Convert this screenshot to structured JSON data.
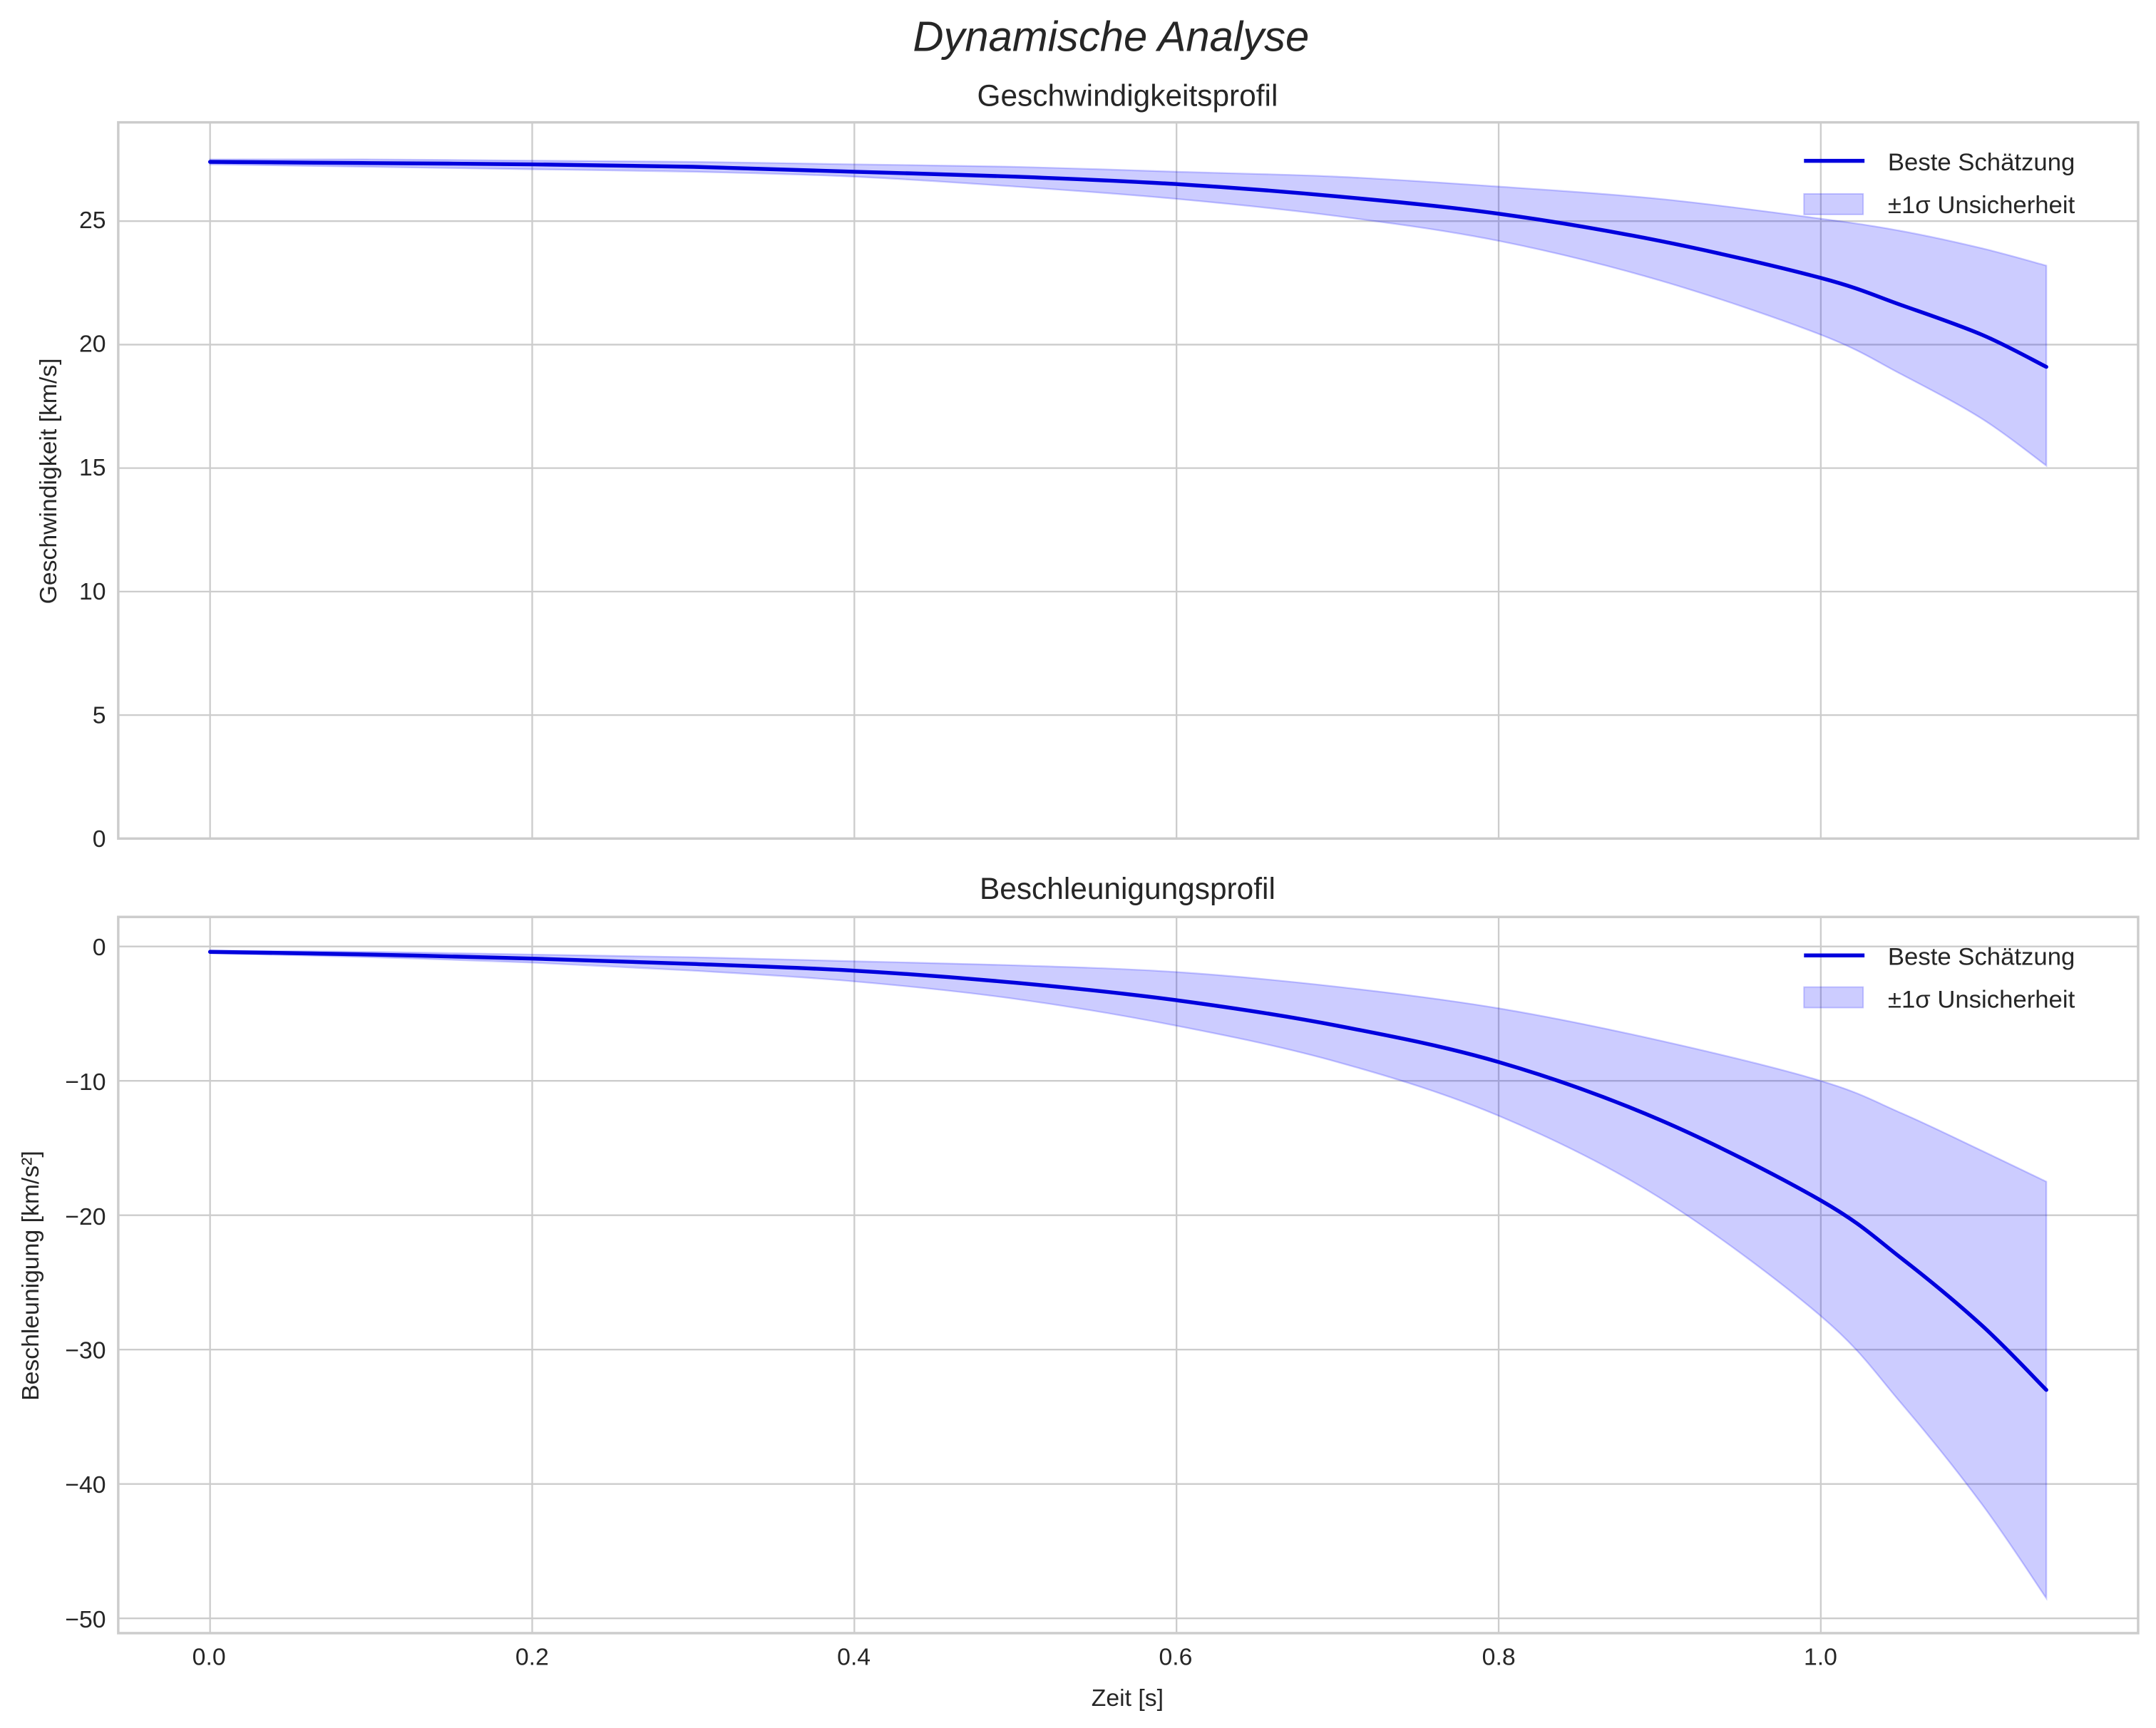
{
  "figure": {
    "suptitle": "Dynamische Analyse",
    "xlabel": "Zeit [s]",
    "x_ticks": [
      "0.0",
      "0.2",
      "0.4",
      "0.6",
      "0.8",
      "1.0"
    ]
  },
  "legend": {
    "line_label": "Beste Schätzung",
    "band_label": "±1σ Unsicherheit"
  },
  "colors": {
    "line": "#0000dd",
    "band": "#7b7bff",
    "grid": "#cccccc",
    "text": "#262626"
  },
  "panels": [
    {
      "title": "Geschwindigkeitsprofil",
      "ylabel": "Geschwindigkeit [km/s]",
      "y_ticks": [
        "0",
        "5",
        "10",
        "15",
        "20",
        "25"
      ]
    },
    {
      "title": "Beschleunigungsprofil",
      "ylabel": "Beschleunigung [km/s²]",
      "y_ticks": [
        "0",
        "−10",
        "−20",
        "−30",
        "−40",
        "−50"
      ]
    }
  ],
  "chart_data": [
    {
      "type": "line",
      "title": "Geschwindigkeitsprofil",
      "xlabel": "",
      "ylabel": "Geschwindigkeit [km/s]",
      "xlim": [
        -0.057,
        1.197
      ],
      "ylim": [
        0,
        29
      ],
      "grid": true,
      "legend_position": "upper right",
      "x": [
        0.0,
        0.1,
        0.2,
        0.3,
        0.4,
        0.5,
        0.6,
        0.7,
        0.8,
        0.9,
        1.0,
        1.05,
        1.1,
        1.14
      ],
      "series": [
        {
          "name": "Beste Schätzung",
          "values": [
            27.4,
            27.35,
            27.3,
            27.2,
            27.0,
            26.8,
            26.5,
            26.0,
            25.3,
            24.2,
            22.7,
            21.6,
            20.4,
            19.1
          ]
        },
        {
          "name": "±1σ Unsicherheit (oben)",
          "values": [
            27.5,
            27.5,
            27.45,
            27.4,
            27.3,
            27.2,
            27.0,
            26.8,
            26.4,
            25.9,
            25.1,
            24.6,
            23.9,
            23.2
          ]
        },
        {
          "name": "±1σ Unsicherheit (unten)",
          "values": [
            27.3,
            27.2,
            27.1,
            27.0,
            26.8,
            26.4,
            25.9,
            25.2,
            24.2,
            22.6,
            20.4,
            18.8,
            17.0,
            15.1
          ]
        }
      ]
    },
    {
      "type": "line",
      "title": "Beschleunigungsprofil",
      "xlabel": "Zeit [s]",
      "ylabel": "Beschleunigung [km/s²]",
      "xlim": [
        -0.057,
        1.197
      ],
      "ylim": [
        -51.1,
        2.2
      ],
      "grid": true,
      "legend_position": "upper right",
      "x": [
        0.0,
        0.1,
        0.2,
        0.3,
        0.4,
        0.5,
        0.6,
        0.7,
        0.8,
        0.9,
        1.0,
        1.05,
        1.1,
        1.14
      ],
      "series": [
        {
          "name": "Beste Schätzung",
          "values": [
            -0.4,
            -0.6,
            -0.9,
            -1.3,
            -1.8,
            -2.7,
            -4.0,
            -5.9,
            -8.6,
            -12.9,
            -18.9,
            -23.2,
            -28.2,
            -33.0
          ]
        },
        {
          "name": "±1σ Unsicherheit (oben)",
          "values": [
            -0.3,
            -0.4,
            -0.6,
            -0.8,
            -1.1,
            -1.4,
            -1.9,
            -3.0,
            -4.6,
            -7.0,
            -10.0,
            -12.4,
            -15.2,
            -17.5
          ]
        },
        {
          "name": "±1σ Unsicherheit (unten)",
          "values": [
            -0.5,
            -0.8,
            -1.2,
            -1.8,
            -2.6,
            -3.9,
            -5.9,
            -8.6,
            -12.6,
            -18.7,
            -27.5,
            -34.0,
            -41.5,
            -48.5
          ]
        }
      ]
    }
  ]
}
